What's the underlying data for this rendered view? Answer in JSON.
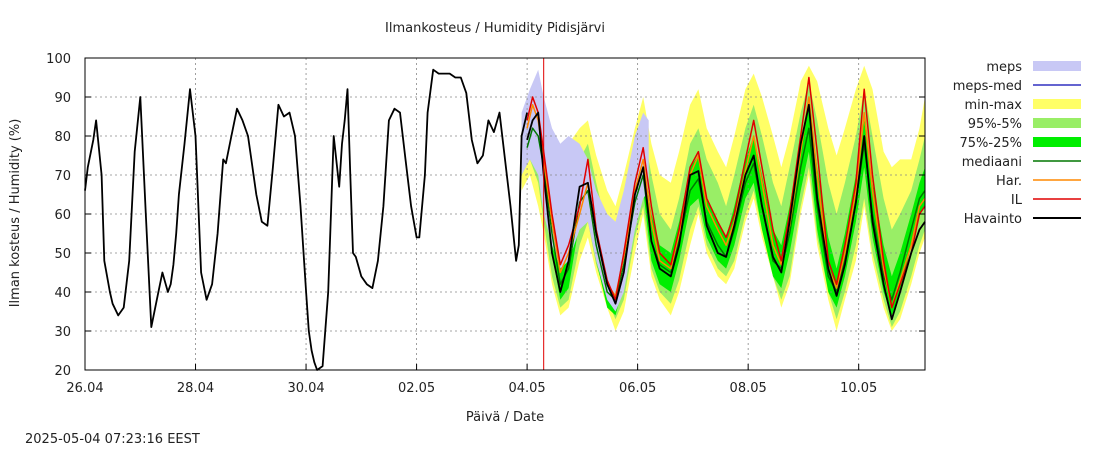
{
  "chart_data": {
    "type": "line",
    "title": "Ilmankosteus / Humidity  Pidisjärvi",
    "xlabel": "Päivä / Date",
    "ylabel": "Ilman kosteus / Humidity (%)",
    "timestamp": "2025-05-04 07:23:16 EEST",
    "xlim": [
      26.0,
      41.2
    ],
    "ylim": [
      20,
      100
    ],
    "yticks": [
      20,
      30,
      40,
      50,
      60,
      70,
      80,
      90,
      100
    ],
    "xticks": [
      {
        "label": "26.04",
        "x": 26.0
      },
      {
        "label": "28.04",
        "x": 28.0
      },
      {
        "label": "30.04",
        "x": 30.0
      },
      {
        "label": "02.05",
        "x": 32.0
      },
      {
        "label": "04.05",
        "x": 34.0
      },
      {
        "label": "06.05",
        "x": 36.0
      },
      {
        "label": "08.05",
        "x": 38.0
      },
      {
        "label": "10.05",
        "x": 40.0
      }
    ],
    "now_line_x": 34.3,
    "grid": true,
    "legend_position": "right",
    "colors": {
      "meps": "#c8c8f5",
      "meps_med": "#3030c0",
      "minmax": "#ffff66",
      "p95_5": "#99ee66",
      "p75_25": "#00ee00",
      "mediaani": "#007700",
      "har": "#ff8800",
      "il": "#e00000",
      "havainto": "#000000",
      "now_line": "#e00000"
    },
    "series": [
      {
        "name": "Havainto",
        "key": "havainto",
        "x": [
          26.0,
          26.05,
          26.15,
          26.2,
          26.3,
          26.35,
          26.45,
          26.5,
          26.6,
          26.7,
          26.8,
          26.9,
          27.0,
          27.1,
          27.2,
          27.3,
          27.4,
          27.5,
          27.55,
          27.6,
          27.65,
          27.7,
          27.8,
          27.9,
          28.0,
          28.1,
          28.2,
          28.3,
          28.4,
          28.5,
          28.55,
          28.65,
          28.75,
          28.85,
          28.95,
          29.0,
          29.1,
          29.2,
          29.3,
          29.4,
          29.5,
          29.6,
          29.7,
          29.8,
          29.9,
          30.0,
          30.05,
          30.1,
          30.15,
          30.2,
          30.3,
          30.4,
          30.5,
          30.6,
          30.65,
          30.7,
          30.75,
          30.8,
          30.85,
          30.9,
          31.0,
          31.1,
          31.2,
          31.3,
          31.4,
          31.5,
          31.6,
          31.7,
          31.8,
          31.9,
          32.0,
          32.05,
          32.15,
          32.2,
          32.3,
          32.4,
          32.5,
          32.6,
          32.7,
          32.8,
          32.9,
          33.0,
          33.1,
          33.2,
          33.3,
          33.4,
          33.5,
          33.6,
          33.7,
          33.8,
          33.85,
          33.9,
          34.0
        ],
        "values": [
          66,
          72,
          79,
          84,
          70,
          48,
          40,
          37,
          34,
          36,
          48,
          76,
          90,
          60,
          31,
          38,
          45,
          40,
          42,
          47,
          55,
          65,
          78,
          92,
          80,
          45,
          38,
          42,
          55,
          74,
          73,
          80,
          87,
          84,
          80,
          75,
          65,
          58,
          57,
          72,
          88,
          85,
          86,
          80,
          62,
          40,
          30,
          25,
          22,
          20,
          21,
          40,
          80,
          67,
          78,
          84,
          92,
          70,
          50,
          49,
          44,
          42,
          41,
          48,
          62,
          84,
          87,
          86,
          74,
          62,
          54,
          54,
          70,
          86,
          97,
          96,
          96,
          96,
          95,
          95,
          91,
          79,
          73,
          75,
          84,
          81,
          86,
          74,
          62,
          48,
          52,
          80,
          86
        ]
      },
      {
        "name": "mediaani",
        "key": "mediaani",
        "x": [
          34.0,
          34.1,
          34.2,
          34.3,
          34.45,
          34.6,
          34.75,
          34.95,
          35.1,
          35.25,
          35.45,
          35.6,
          35.75,
          35.95,
          36.1,
          36.25,
          36.4,
          36.6,
          36.75,
          36.95,
          37.1,
          37.25,
          37.45,
          37.6,
          37.75,
          37.95,
          38.1,
          38.25,
          38.45,
          38.6,
          38.75,
          38.95,
          39.1,
          39.25,
          39.45,
          39.6,
          39.75,
          39.95,
          40.1,
          40.25,
          40.45,
          40.6,
          40.75,
          40.95,
          41.1,
          41.2
        ],
        "values": [
          77,
          82,
          80,
          72,
          55,
          42,
          46,
          63,
          66,
          52,
          40,
          38,
          47,
          63,
          70,
          53,
          47,
          45,
          53,
          66,
          69,
          58,
          52,
          49,
          56,
          68,
          73,
          62,
          48,
          46,
          55,
          72,
          82,
          62,
          44,
          40,
          48,
          63,
          78,
          60,
          44,
          38,
          45,
          56,
          64,
          66
        ]
      },
      {
        "name": "Har.",
        "key": "har",
        "x": [
          34.0,
          34.1,
          34.2,
          34.3,
          34.45,
          34.6,
          34.75,
          34.95,
          35.1,
          35.25,
          35.45,
          35.6,
          35.75,
          35.95,
          36.1,
          36.25,
          36.4,
          36.6,
          36.75,
          36.95,
          37.1,
          37.25,
          37.45,
          37.6,
          37.75,
          37.95,
          38.1,
          38.25,
          38.45,
          38.6,
          38.75,
          38.95,
          39.1,
          39.25,
          39.45,
          39.6,
          39.75,
          39.95,
          40.1,
          40.25,
          40.45,
          40.6,
          40.75,
          40.95,
          41.1,
          41.2
        ],
        "values": [
          82,
          88,
          84,
          74,
          58,
          45,
          50,
          60,
          68,
          55,
          42,
          39,
          49,
          66,
          74,
          58,
          48,
          46,
          55,
          70,
          75,
          62,
          56,
          52,
          58,
          71,
          80,
          68,
          52,
          47,
          57,
          76,
          90,
          70,
          46,
          41,
          50,
          66,
          86,
          66,
          46,
          36,
          43,
          52,
          62,
          64
        ]
      },
      {
        "name": "IL",
        "key": "il",
        "x": [
          34.0,
          34.1,
          34.2,
          34.3,
          34.45,
          34.6,
          34.75,
          34.95,
          35.1,
          35.25,
          35.45,
          35.6,
          35.75,
          35.95,
          36.1,
          36.25,
          36.4,
          36.6,
          36.75,
          36.95,
          37.1,
          37.25,
          37.45,
          37.6,
          37.75,
          37.95,
          38.1,
          38.25,
          38.45,
          38.6,
          38.75,
          38.95,
          39.1,
          39.25,
          39.45,
          39.6,
          39.75,
          39.95,
          40.1,
          40.25,
          40.45,
          40.6,
          40.75,
          40.95,
          41.1,
          41.2
        ],
        "values": [
          84,
          90,
          86,
          76,
          60,
          47,
          52,
          62,
          74,
          56,
          43,
          38,
          50,
          68,
          77,
          62,
          50,
          47,
          56,
          72,
          76,
          64,
          58,
          54,
          60,
          74,
          84,
          72,
          56,
          48,
          60,
          80,
          95,
          76,
          48,
          42,
          52,
          68,
          92,
          70,
          48,
          36,
          42,
          50,
          60,
          62
        ]
      },
      {
        "name": "Havainto",
        "key": "havainto_fc",
        "x": [
          34.0,
          34.1,
          34.2,
          34.3,
          34.45,
          34.6,
          34.75,
          34.95,
          35.1,
          35.25,
          35.45,
          35.6,
          35.75,
          35.95,
          36.1,
          36.25,
          36.4,
          36.6,
          36.75,
          36.95,
          37.1,
          37.25,
          37.45,
          37.6,
          37.75,
          37.95,
          38.1,
          38.25,
          38.45,
          38.6,
          38.75,
          38.95,
          39.1,
          39.25,
          39.45,
          39.6,
          39.75,
          39.95,
          40.1,
          40.25,
          40.45,
          40.6,
          40.75,
          40.95,
          41.1,
          41.2
        ],
        "values": [
          79,
          84,
          86,
          70,
          50,
          40,
          48,
          67,
          68,
          55,
          42,
          37,
          45,
          65,
          72,
          53,
          46,
          44,
          52,
          70,
          71,
          57,
          50,
          49,
          57,
          70,
          75,
          62,
          49,
          45,
          58,
          78,
          88,
          64,
          46,
          39,
          47,
          63,
          80,
          58,
          42,
          33,
          40,
          50,
          56,
          58
        ]
      }
    ],
    "bands": [
      {
        "name": "min-max",
        "key": "minmax",
        "x": [
          33.9,
          34.05,
          34.2,
          34.3,
          34.45,
          34.6,
          34.75,
          34.95,
          35.1,
          35.25,
          35.45,
          35.6,
          35.75,
          35.95,
          36.1,
          36.25,
          36.4,
          36.6,
          36.75,
          36.95,
          37.1,
          37.25,
          37.45,
          37.6,
          37.75,
          37.95,
          38.1,
          38.25,
          38.45,
          38.6,
          38.75,
          38.95,
          39.1,
          39.25,
          39.45,
          39.6,
          39.75,
          39.95,
          40.1,
          40.25,
          40.45,
          40.6,
          40.75,
          40.95,
          41.1,
          41.2
        ],
        "upper": [
          85,
          91,
          92,
          86,
          76,
          70,
          78,
          82,
          84,
          75,
          66,
          62,
          70,
          82,
          90,
          78,
          70,
          68,
          76,
          88,
          92,
          82,
          76,
          72,
          80,
          92,
          96,
          90,
          80,
          72,
          80,
          94,
          98,
          94,
          82,
          75,
          82,
          92,
          98,
          92,
          76,
          72,
          74,
          74,
          82,
          90
        ],
        "lower": [
          66,
          70,
          62,
          55,
          42,
          34,
          36,
          48,
          54,
          45,
          36,
          30,
          35,
          50,
          60,
          44,
          38,
          34,
          40,
          52,
          60,
          50,
          44,
          42,
          46,
          58,
          64,
          54,
          44,
          36,
          42,
          60,
          70,
          52,
          38,
          30,
          38,
          48,
          62,
          48,
          36,
          30,
          33,
          42,
          50,
          54
        ]
      },
      {
        "name": "95%-5%",
        "key": "p95_5",
        "x": [
          33.9,
          34.05,
          34.2,
          34.3,
          34.45,
          34.6,
          34.75,
          34.95,
          35.1,
          35.25,
          35.45,
          35.6,
          35.75,
          35.95,
          36.1,
          36.25,
          36.4,
          36.6,
          36.75,
          36.95,
          37.1,
          37.25,
          37.45,
          37.6,
          37.75,
          37.95,
          38.1,
          38.25,
          38.45,
          38.6,
          38.75,
          38.95,
          39.1,
          39.25,
          39.45,
          39.6,
          39.75,
          39.95,
          40.1,
          40.25,
          40.45,
          40.6,
          40.75,
          40.95,
          41.1,
          41.2
        ],
        "upper": [
          80,
          88,
          88,
          80,
          68,
          60,
          64,
          74,
          78,
          68,
          56,
          52,
          60,
          74,
          82,
          70,
          60,
          56,
          64,
          78,
          82,
          74,
          68,
          62,
          70,
          82,
          88,
          80,
          68,
          62,
          72,
          86,
          94,
          84,
          68,
          60,
          68,
          80,
          92,
          80,
          64,
          56,
          60,
          66,
          74,
          80
        ],
        "lower": [
          70,
          74,
          68,
          58,
          44,
          36,
          38,
          52,
          58,
          47,
          38,
          33,
          38,
          54,
          62,
          46,
          40,
          37,
          43,
          56,
          62,
          52,
          46,
          44,
          48,
          60,
          66,
          56,
          44,
          38,
          44,
          62,
          72,
          54,
          40,
          33,
          40,
          52,
          64,
          50,
          38,
          31,
          35,
          44,
          52,
          56
        ]
      },
      {
        "name": "75%-25%",
        "key": "p75_25",
        "x": [
          33.9,
          34.05,
          34.2,
          34.3,
          34.45,
          34.6,
          34.75,
          34.95,
          35.1,
          35.25,
          35.45,
          35.6,
          35.75,
          35.95,
          36.1,
          36.25,
          36.4,
          36.6,
          36.75,
          36.95,
          37.1,
          37.25,
          37.45,
          37.6,
          37.75,
          37.95,
          38.1,
          38.25,
          38.45,
          38.6,
          38.75,
          38.95,
          39.1,
          39.25,
          39.45,
          39.6,
          39.75,
          39.95,
          40.1,
          40.25,
          40.45,
          40.6,
          40.75,
          40.95,
          41.1,
          41.2
        ],
        "upper": [
          78,
          84,
          84,
          76,
          60,
          48,
          52,
          66,
          70,
          58,
          46,
          43,
          52,
          68,
          74,
          60,
          52,
          50,
          58,
          72,
          75,
          64,
          58,
          54,
          62,
          74,
          80,
          70,
          56,
          52,
          62,
          78,
          88,
          72,
          54,
          46,
          55,
          70,
          84,
          68,
          52,
          44,
          50,
          60,
          68,
          72
        ],
        "lower": [
          74,
          78,
          74,
          66,
          50,
          38,
          41,
          58,
          62,
          48,
          36,
          34,
          42,
          58,
          66,
          48,
          42,
          40,
          48,
          62,
          64,
          54,
          48,
          46,
          52,
          64,
          68,
          56,
          44,
          41,
          50,
          66,
          76,
          56,
          40,
          36,
          44,
          58,
          72,
          54,
          40,
          34,
          40,
          52,
          60,
          62
        ]
      },
      {
        "name": "meps",
        "key": "meps",
        "x": [
          33.9,
          34.05,
          34.2,
          34.3,
          34.45,
          34.6,
          34.75,
          34.95,
          35.1,
          35.25,
          35.45,
          35.6,
          35.75,
          35.95,
          36.1,
          36.2
        ],
        "upper": [
          86,
          92,
          97,
          90,
          82,
          78,
          80,
          78,
          74,
          66,
          60,
          58,
          66,
          80,
          86,
          84
        ],
        "lower": [
          70,
          74,
          70,
          60,
          52,
          46,
          48,
          56,
          58,
          48,
          38,
          35,
          40,
          56,
          64,
          66
        ]
      }
    ],
    "legend": [
      {
        "label": "meps",
        "key": "meps",
        "kind": "band"
      },
      {
        "label": "meps-med",
        "key": "meps_med",
        "kind": "line"
      },
      {
        "label": "min-max",
        "key": "minmax",
        "kind": "band"
      },
      {
        "label": "95%-5%",
        "key": "p95_5",
        "kind": "band"
      },
      {
        "label": "75%-25%",
        "key": "p75_25",
        "kind": "band"
      },
      {
        "label": "mediaani",
        "key": "mediaani",
        "kind": "line"
      },
      {
        "label": "Har.",
        "key": "har",
        "kind": "line"
      },
      {
        "label": "IL",
        "key": "il",
        "kind": "line"
      },
      {
        "label": "Havainto",
        "key": "havainto",
        "kind": "line"
      }
    ]
  }
}
